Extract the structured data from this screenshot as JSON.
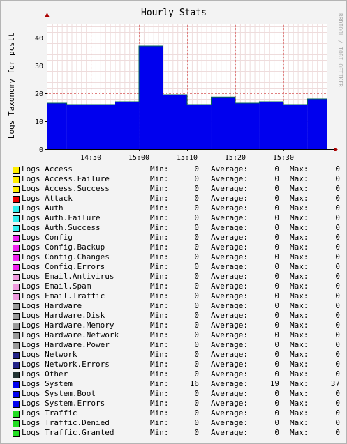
{
  "chart_data": {
    "type": "area",
    "title": "Hourly Stats",
    "ylabel": "Logs Taxonomy for pcstt",
    "xlabel": "",
    "watermark": "RRDTOOL / TOBI OETIKER",
    "ylim": [
      0,
      45
    ],
    "yticks": [
      0,
      10,
      20,
      30,
      40
    ],
    "xlim_minutes": [
      0,
      58
    ],
    "xticks": [
      {
        "label": "14:50",
        "minute": 9
      },
      {
        "label": "15:00",
        "minute": 19
      },
      {
        "label": "15:10",
        "minute": 29
      },
      {
        "label": "15:20",
        "minute": 39
      },
      {
        "label": "15:30",
        "minute": 49
      }
    ],
    "grid": true,
    "series": [
      {
        "name": "Logs System",
        "color": "#0000ee",
        "steps": [
          {
            "from": 0,
            "to": 4,
            "value": 16.5
          },
          {
            "from": 4,
            "to": 14,
            "value": 16
          },
          {
            "from": 14,
            "to": 19,
            "value": 17
          },
          {
            "from": 19,
            "to": 24,
            "value": 37
          },
          {
            "from": 24,
            "to": 29,
            "value": 19.5
          },
          {
            "from": 29,
            "to": 34,
            "value": 16
          },
          {
            "from": 34,
            "to": 39,
            "value": 18.7
          },
          {
            "from": 39,
            "to": 44,
            "value": 16.5
          },
          {
            "from": 44,
            "to": 49,
            "value": 17
          },
          {
            "from": 49,
            "to": 54,
            "value": 16
          },
          {
            "from": 54,
            "to": 58,
            "value": 18
          }
        ]
      }
    ]
  },
  "labels": {
    "min": "Min:",
    "average": "Average:",
    "max": "Max:"
  },
  "legend": [
    {
      "name": "Logs Access",
      "color": "#ffee00",
      "min": "0",
      "avg": "0",
      "max": "0"
    },
    {
      "name": "Logs Access.Failure",
      "color": "#ffee00",
      "min": "0",
      "avg": "0",
      "max": "0"
    },
    {
      "name": "Logs Access.Success",
      "color": "#ffee00",
      "min": "0",
      "avg": "0",
      "max": "0"
    },
    {
      "name": "Logs Attack",
      "color": "#ee0000",
      "min": "0",
      "avg": "0",
      "max": "0"
    },
    {
      "name": "Logs Auth",
      "color": "#33eeee",
      "min": "0",
      "avg": "0",
      "max": "0"
    },
    {
      "name": "Logs Auth.Failure",
      "color": "#33eeee",
      "min": "0",
      "avg": "0",
      "max": "0"
    },
    {
      "name": "Logs Auth.Success",
      "color": "#33eeee",
      "min": "0",
      "avg": "0",
      "max": "0"
    },
    {
      "name": "Logs Config",
      "color": "#ee22ee",
      "min": "0",
      "avg": "0",
      "max": "0"
    },
    {
      "name": "Logs Config.Backup",
      "color": "#ee22ee",
      "min": "0",
      "avg": "0",
      "max": "0"
    },
    {
      "name": "Logs Config.Changes",
      "color": "#ee22ee",
      "min": "0",
      "avg": "0",
      "max": "0"
    },
    {
      "name": "Logs Config.Errors",
      "color": "#ee22ee",
      "min": "0",
      "avg": "0",
      "max": "0"
    },
    {
      "name": "Logs Email.Antivirus",
      "color": "#ee99dd",
      "min": "0",
      "avg": "0",
      "max": "0"
    },
    {
      "name": "Logs Email.Spam",
      "color": "#ee99dd",
      "min": "0",
      "avg": "0",
      "max": "0"
    },
    {
      "name": "Logs Email.Traffic",
      "color": "#ee99dd",
      "min": "0",
      "avg": "0",
      "max": "0"
    },
    {
      "name": "Logs Hardware",
      "color": "#999999",
      "min": "0",
      "avg": "0",
      "max": "0"
    },
    {
      "name": "Logs Hardware.Disk",
      "color": "#999999",
      "min": "0",
      "avg": "0",
      "max": "0"
    },
    {
      "name": "Logs Hardware.Memory",
      "color": "#999999",
      "min": "0",
      "avg": "0",
      "max": "0"
    },
    {
      "name": "Logs Hardware.Network",
      "color": "#999999",
      "min": "0",
      "avg": "0",
      "max": "0"
    },
    {
      "name": "Logs Hardware.Power",
      "color": "#999999",
      "min": "0",
      "avg": "0",
      "max": "0"
    },
    {
      "name": "Logs Network",
      "color": "#222288",
      "min": "0",
      "avg": "0",
      "max": "0"
    },
    {
      "name": "Logs Network.Errors",
      "color": "#222288",
      "min": "0",
      "avg": "0",
      "max": "0"
    },
    {
      "name": "Logs Other",
      "color": "#223333",
      "min": "0",
      "avg": "0",
      "max": "0"
    },
    {
      "name": "Logs System",
      "color": "#0000ee",
      "min": "16",
      "avg": "19",
      "max": "37"
    },
    {
      "name": "Logs System.Boot",
      "color": "#0000ee",
      "min": "0",
      "avg": "0",
      "max": "0"
    },
    {
      "name": "Logs System.Errors",
      "color": "#0000ee",
      "min": "0",
      "avg": "0",
      "max": "0"
    },
    {
      "name": "Logs Traffic",
      "color": "#22dd22",
      "min": "0",
      "avg": "0",
      "max": "0"
    },
    {
      "name": "Logs Traffic.Denied",
      "color": "#22dd22",
      "min": "0",
      "avg": "0",
      "max": "0"
    },
    {
      "name": "Logs Traffic.Granted",
      "color": "#22dd22",
      "min": "0",
      "avg": "0",
      "max": "0"
    }
  ]
}
